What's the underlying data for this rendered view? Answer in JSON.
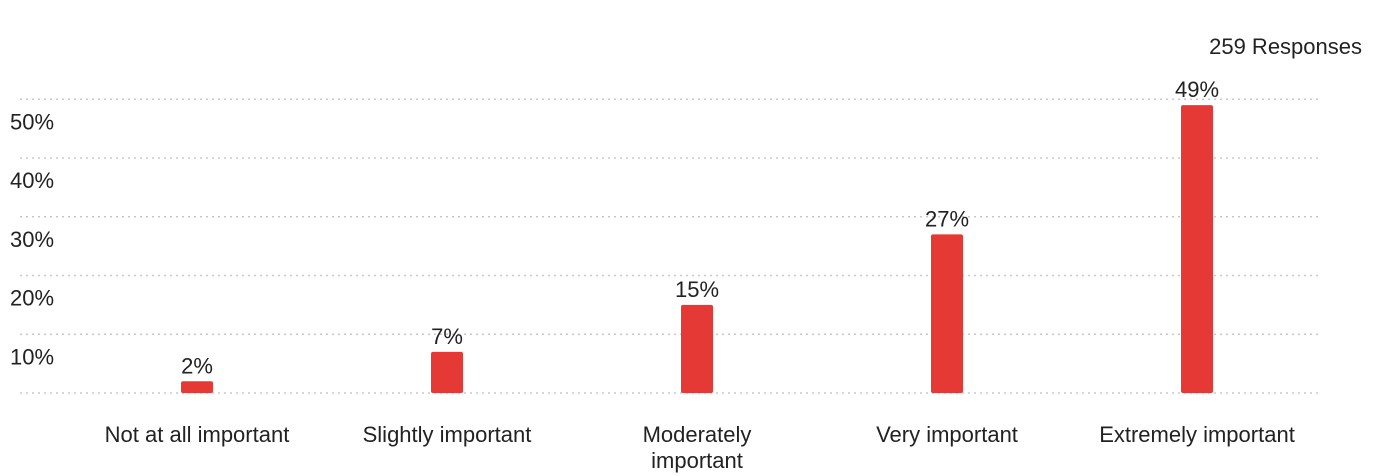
{
  "responses_label": "259 Responses",
  "colors": {
    "bar": "#e53935",
    "grid": "#c8c8c8",
    "text": "#222222"
  },
  "chart_data": {
    "type": "bar",
    "title": "",
    "xlabel": "",
    "ylabel": "",
    "ylim": [
      0,
      50
    ],
    "yticks": [
      10,
      20,
      30,
      40,
      50
    ],
    "ytick_labels": [
      "10%",
      "20%",
      "30%",
      "40%",
      "50%"
    ],
    "grid": true,
    "legend": "none",
    "categories": [
      "Not at all important",
      "Slightly important",
      "Moderately important",
      "Very important",
      "Extremely important"
    ],
    "category_labels": [
      [
        "Not at all important"
      ],
      [
        "Slightly important"
      ],
      [
        "Moderately",
        "important"
      ],
      [
        "Very important"
      ],
      [
        "Extremely important"
      ]
    ],
    "values": [
      2,
      7,
      15,
      27,
      49
    ],
    "value_labels": [
      "2%",
      "7%",
      "15%",
      "27%",
      "49%"
    ]
  }
}
